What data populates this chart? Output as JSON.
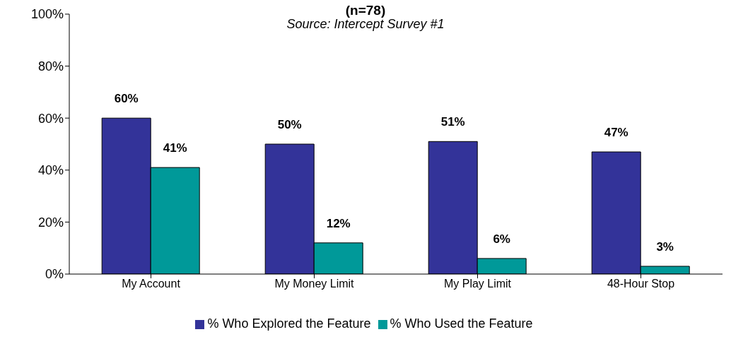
{
  "chart_data": {
    "type": "bar",
    "title": "(n=78)",
    "subtitle": "Source: Intercept Survey #1",
    "categories": [
      "My Account",
      "My Money Limit",
      "My Play Limit",
      "48-Hour Stop"
    ],
    "series": [
      {
        "name": "% Who Explored the Feature",
        "color": "#333399",
        "values": [
          60,
          50,
          51,
          47
        ],
        "value_labels": [
          "60%",
          "50%",
          "51%",
          "47%"
        ]
      },
      {
        "name": "% Who Used the Feature",
        "color": "#009999",
        "values": [
          41,
          12,
          6,
          3
        ],
        "value_labels": [
          "41%",
          "12%",
          "6%",
          "3%"
        ]
      }
    ],
    "ylim": [
      0,
      100
    ],
    "yticks": [
      {
        "value": 0,
        "label": "0%"
      },
      {
        "value": 20,
        "label": "20%"
      },
      {
        "value": 40,
        "label": "40%"
      },
      {
        "value": 60,
        "label": "60%"
      },
      {
        "value": 80,
        "label": "80%"
      },
      {
        "value": 100,
        "label": "100%"
      }
    ],
    "grid": false,
    "legend": "bottom"
  }
}
